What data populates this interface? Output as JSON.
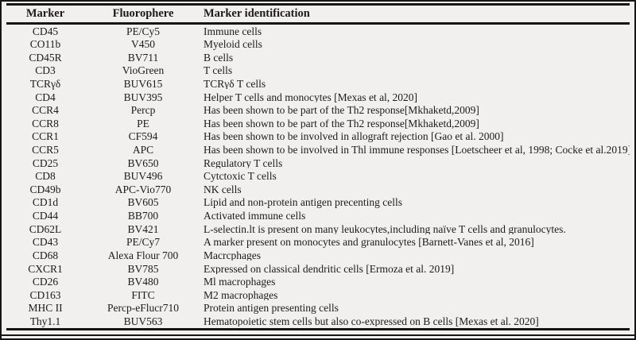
{
  "table": {
    "columns": [
      "Marker",
      "Fluorophere",
      "Marker identification"
    ],
    "rows": [
      {
        "marker": "CD45",
        "fluorophore": "PE/Cy5",
        "identification": "Immune cells"
      },
      {
        "marker": "CO11b",
        "fluorophore": "V450",
        "identification": "Myeloid cells"
      },
      {
        "marker": "CD45R",
        "fluorophore": "BV711",
        "identification": "B cells"
      },
      {
        "marker": "CD3",
        "fluorophore": "VioGreen",
        "identification": "T cells"
      },
      {
        "marker": "TCRγδ",
        "fluorophore": "BUV615",
        "identification": "TCRγδ T cells"
      },
      {
        "marker": "CD4",
        "fluorophore": "BUV395",
        "identification": "Helper T cells and monocytes [Mexas et al, 2020]"
      },
      {
        "marker": "CCR4",
        "fluorophore": "Percp",
        "identification": "Has been shown to be part of the Th2 response[Mkhaketd,2009]"
      },
      {
        "marker": "CCR8",
        "fluorophore": "PE",
        "identification": "Has been shown to be part of the Th2 response[Mkhaketd,2009]"
      },
      {
        "marker": "CCR1",
        "fluorophore": "CF594",
        "identification": "Has been shown to be involved in allograft rejection [Gao et al. 2000]"
      },
      {
        "marker": "CCR5",
        "fluorophore": "APC",
        "identification": "Has been shown to be involved in Thl immune responses [Loetscheer et al, 1998; Cocke et al.2019]"
      },
      {
        "marker": "CD25",
        "fluorophore": "BV650",
        "identification": "Regulatory T cells"
      },
      {
        "marker": "CD8",
        "fluorophore": "BUV496",
        "identification": "Cytctoxic T cells"
      },
      {
        "marker": "CD49b",
        "fluorophore": "APC-Vio770",
        "identification": "NK cells"
      },
      {
        "marker": "CD1d",
        "fluorophore": "BV605",
        "identification": "Lipid and non-protein antigen precenting cells"
      },
      {
        "marker": "CD44",
        "fluorophore": "BB700",
        "identification": "Activated immune cells"
      },
      {
        "marker": "CD62L",
        "fluorophore": "BV421",
        "identification": "L-selectin.lt is present on many leukocytes,including naïve T cells and granulocytes."
      },
      {
        "marker": "CD43",
        "fluorophore": "PE/Cy7",
        "identification": "A marker present on monocytes and granulocytes [Barnett-Vanes et al, 2016]"
      },
      {
        "marker": "CD68",
        "fluorophore": "Alexa Flour 700",
        "identification": "Macrcphages"
      },
      {
        "marker": "CXCR1",
        "fluorophore": "BV785",
        "identification": "Expressed on classical dendritic cells [Ermoza et al. 2019]"
      },
      {
        "marker": "CD26",
        "fluorophore": "BV480",
        "identification": "Ml macrophages"
      },
      {
        "marker": "CD163",
        "fluorophore": "FITC",
        "identification": "M2 macrophages"
      },
      {
        "marker": "MHC II",
        "fluorophore": "Percp-eFlucr710",
        "identification": "Protein antigen presenting cells"
      },
      {
        "marker": "Thy1.1",
        "fluorophore": "BUV563",
        "identification": "Hematopoietic stem cells but also co-expressed on B cells [Mexas et al. 2020]"
      }
    ]
  }
}
